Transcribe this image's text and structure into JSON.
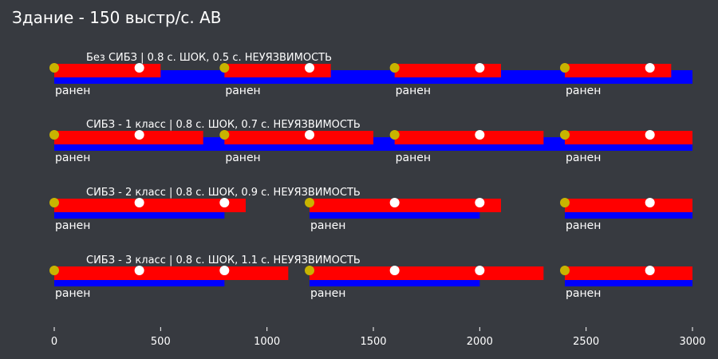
{
  "chart_data": {
    "type": "timeline",
    "title": "Здание - 150 выстр/с. АВ",
    "xlim": [
      0,
      3000
    ],
    "x_ticks": [
      0,
      500,
      1000,
      1500,
      2000,
      2500,
      3000
    ],
    "colors": {
      "background": "#373a40",
      "shock": "#ff0000",
      "invulnerable": "#0000ff",
      "hit": "#c8b400",
      "shot": "#ffffff",
      "text": "#ffffff"
    },
    "rows": [
      {
        "label": "Без СИБЗ | 0.8 с. ШОК, 0.5 с. НЕУЯЗВИМОСТЬ",
        "blue": [
          [
            0,
            3000
          ]
        ],
        "red": [
          [
            0,
            500
          ],
          [
            800,
            1300
          ],
          [
            1600,
            2100
          ],
          [
            2400,
            2900
          ]
        ],
        "hits": [
          0,
          800,
          1600,
          2400
        ],
        "shots": [
          400,
          1200,
          2000,
          2800
        ],
        "wounded": [
          0,
          800,
          1600,
          2400
        ],
        "wounded_label": "ранен"
      },
      {
        "label": "СИБЗ - 1 класс | 0.8 с. ШОК, 0.7 с. НЕУЯЗВИМОСТЬ",
        "blue": [
          [
            0,
            3000
          ]
        ],
        "red": [
          [
            0,
            700
          ],
          [
            800,
            1500
          ],
          [
            1600,
            2300
          ],
          [
            2400,
            3000
          ]
        ],
        "hits": [
          0,
          800,
          1600,
          2400
        ],
        "shots": [
          400,
          1200,
          2000,
          2800
        ],
        "wounded": [
          0,
          800,
          1600,
          2400
        ],
        "wounded_label": "ранен"
      },
      {
        "label": "СИБЗ - 2 класс | 0.8 с. ШОК, 0.9 с. НЕУЯЗВИМОСТЬ",
        "blue": [
          [
            0,
            800
          ],
          [
            1200,
            2000
          ],
          [
            2400,
            3000
          ]
        ],
        "red": [
          [
            0,
            900
          ],
          [
            1200,
            2100
          ],
          [
            2400,
            3000
          ]
        ],
        "hits": [
          0,
          1200,
          2400
        ],
        "shots": [
          400,
          800,
          1600,
          2000,
          2800
        ],
        "wounded": [
          0,
          1200,
          2400
        ],
        "wounded_label": "ранен"
      },
      {
        "label": "СИБЗ - 3 класс | 0.8 с. ШОК, 1.1 с. НЕУЯЗВИМОСТЬ",
        "blue": [
          [
            0,
            800
          ],
          [
            1200,
            2000
          ],
          [
            2400,
            3000
          ]
        ],
        "red": [
          [
            0,
            1100
          ],
          [
            1200,
            2300
          ],
          [
            2400,
            3000
          ]
        ],
        "hits": [
          0,
          1200,
          2400
        ],
        "shots": [
          400,
          800,
          1600,
          2000,
          2800
        ],
        "wounded": [
          0,
          1200,
          2400
        ],
        "wounded_label": "ранен"
      }
    ]
  }
}
